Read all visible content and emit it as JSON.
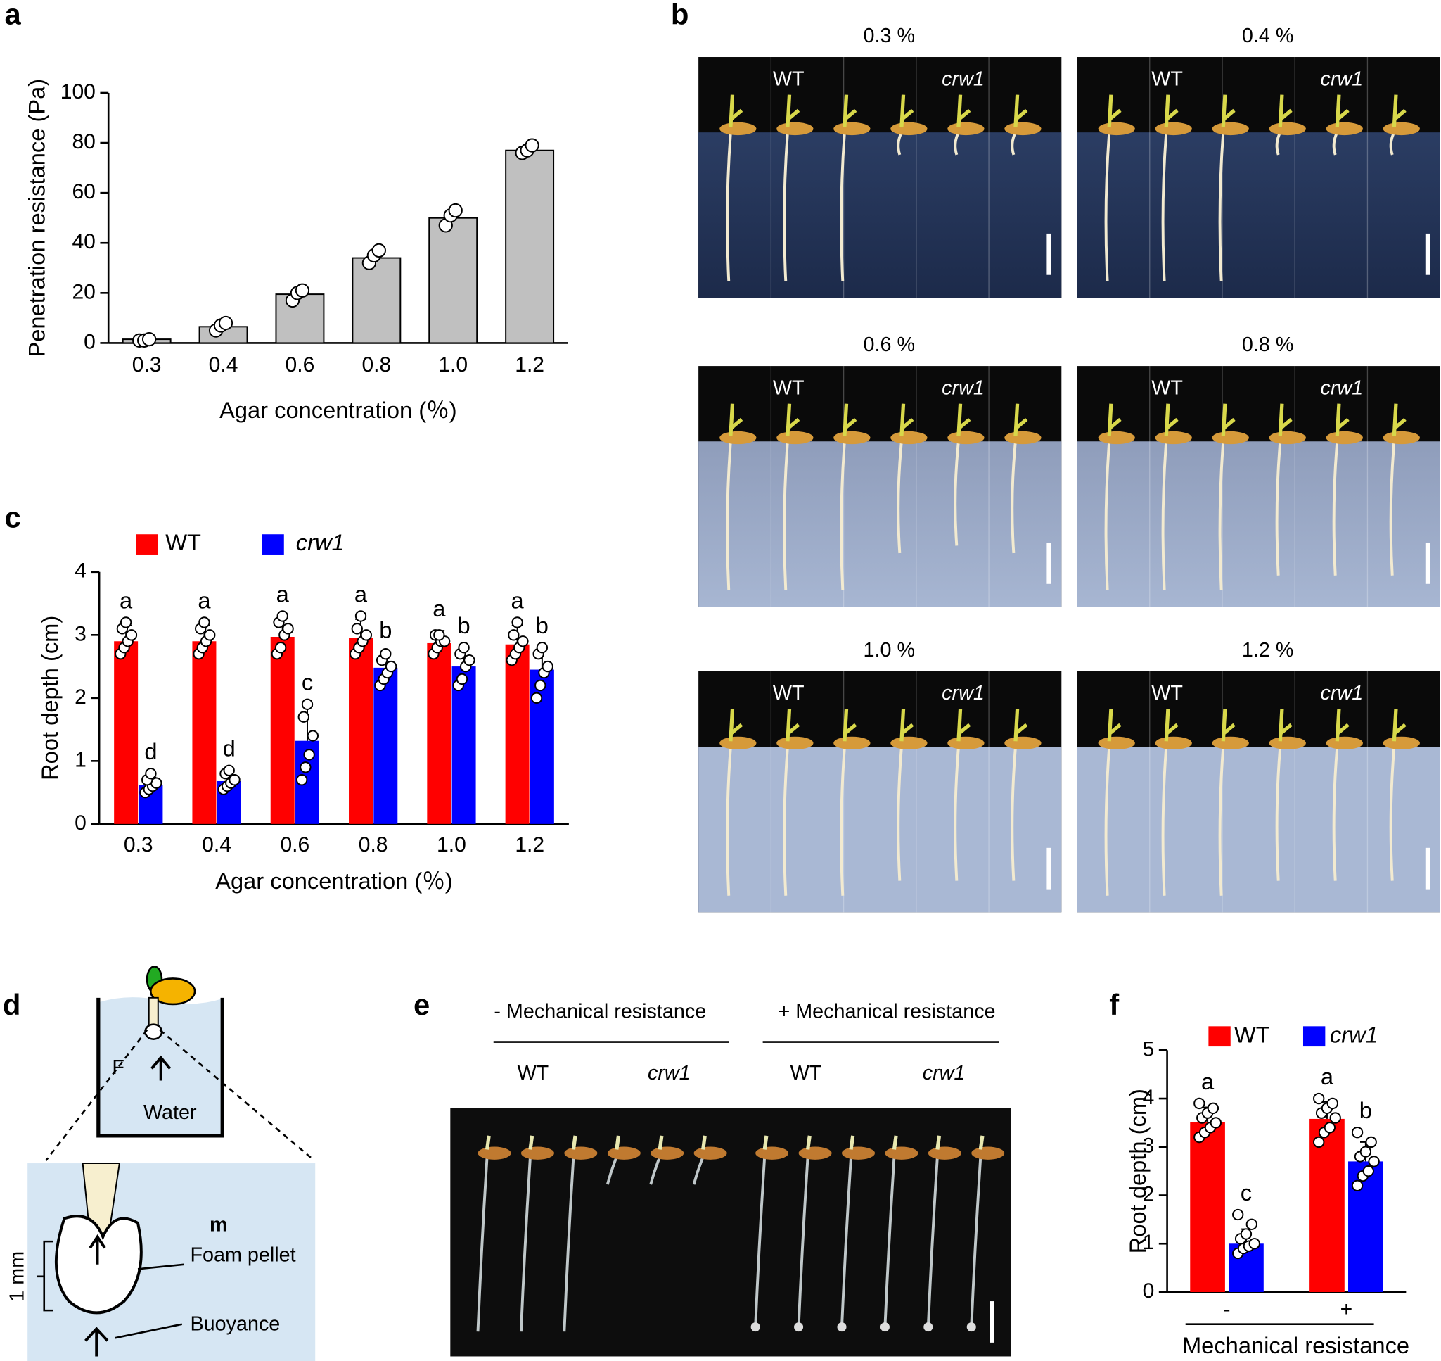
{
  "panel_labels": [
    "a",
    "b",
    "c",
    "d",
    "e",
    "f"
  ],
  "chart_data": [
    {
      "type": "bar",
      "ylabel": "Penetration resistance (Pa)",
      "xlabel": "Agar concentration (％)",
      "categories": [
        "0.3",
        "0.4",
        "0.6",
        "0.8",
        "1.0",
        "1.2"
      ],
      "series": [
        {
          "color": "#c0c0c0",
          "values": [
            1.5,
            6.5,
            19.5,
            34,
            50,
            77
          ],
          "points": [
            [
              1,
              1,
              1.5
            ],
            [
              5,
              7,
              8
            ],
            [
              17,
              20,
              21
            ],
            [
              32,
              35,
              37
            ],
            [
              47,
              51,
              53
            ],
            [
              76,
              77,
              79
            ]
          ]
        }
      ],
      "ylim": [
        0,
        100
      ],
      "yticks": [
        0,
        20,
        40,
        60,
        80,
        100
      ]
    },
    {
      "type": "bar",
      "ylabel": "Root depth (cm)",
      "xlabel": "Agar concentration (％)",
      "categories": [
        "0.3",
        "0.4",
        "0.6",
        "0.8",
        "1.0",
        "1.2"
      ],
      "series": [
        {
          "name": "WT",
          "color": "#ff0000",
          "values": [
            2.9,
            2.9,
            2.97,
            2.95,
            2.87,
            2.85
          ],
          "errors": [
            0.25,
            0.25,
            0.3,
            0.3,
            0.2,
            0.3
          ],
          "letters": [
            "a",
            "a",
            "a",
            "a",
            "a",
            "a"
          ],
          "points": [
            [
              2.7,
              2.8,
              2.9,
              3.0,
              3.1,
              3.2
            ],
            [
              2.7,
              2.8,
              2.9,
              3.0,
              3.1,
              3.2
            ],
            [
              2.7,
              2.8,
              3.0,
              3.1,
              3.2,
              3.3
            ],
            [
              2.7,
              2.8,
              2.9,
              3.0,
              3.1,
              3.3
            ],
            [
              2.7,
              2.8,
              2.9,
              2.9,
              3.0,
              3.0
            ],
            [
              2.6,
              2.7,
              2.8,
              2.9,
              3.0,
              3.2
            ]
          ]
        },
        {
          "name": "crw1",
          "color": "#0000ff",
          "values": [
            0.62,
            0.68,
            1.32,
            2.48,
            2.5,
            2.45
          ],
          "errors": [
            0.12,
            0.15,
            0.55,
            0.25,
            0.3,
            0.35
          ],
          "letters": [
            "d",
            "d",
            "c",
            "b",
            "b",
            "b"
          ],
          "points": [
            [
              0.5,
              0.55,
              0.6,
              0.65,
              0.7,
              0.8
            ],
            [
              0.55,
              0.6,
              0.65,
              0.7,
              0.8,
              0.85
            ],
            [
              0.7,
              0.9,
              1.1,
              1.4,
              1.7,
              1.9
            ],
            [
              2.2,
              2.3,
              2.4,
              2.5,
              2.6,
              2.7
            ],
            [
              2.2,
              2.3,
              2.5,
              2.6,
              2.7,
              2.8
            ],
            [
              2.0,
              2.2,
              2.4,
              2.5,
              2.7,
              2.8
            ]
          ]
        }
      ],
      "ylim": [
        0,
        4
      ],
      "yticks": [
        0,
        1,
        2,
        3,
        4
      ]
    },
    {
      "type": "bar",
      "ylabel": "Root depth (cm)",
      "xlabel": "Mechanical resistance",
      "categories": [
        "-",
        "+"
      ],
      "series": [
        {
          "name": "WT",
          "color": "#ff0000",
          "values": [
            3.52,
            3.58
          ],
          "errors": [
            0.3,
            0.35
          ],
          "letters": [
            "a",
            "a"
          ],
          "points": [
            [
              3.2,
              3.3,
              3.4,
              3.5,
              3.6,
              3.7,
              3.8,
              3.9
            ],
            [
              3.1,
              3.3,
              3.4,
              3.6,
              3.7,
              3.8,
              3.9,
              4.0
            ]
          ]
        },
        {
          "name": "crw1",
          "color": "#0000ff",
          "values": [
            1.0,
            2.7
          ],
          "errors": [
            0.3,
            0.4
          ],
          "letters": [
            "c",
            "b"
          ],
          "points": [
            [
              0.8,
              0.9,
              0.95,
              1.0,
              1.1,
              1.2,
              1.4,
              1.6
            ],
            [
              2.2,
              2.4,
              2.5,
              2.7,
              2.8,
              2.9,
              3.1,
              3.3
            ]
          ]
        }
      ],
      "ylim": [
        0,
        5
      ],
      "yticks": [
        0,
        1,
        2,
        3,
        4,
        5
      ]
    }
  ],
  "photo_b": [
    {
      "title": "0.3 %",
      "left": "WT",
      "right": "crw1"
    },
    {
      "title": "0.4 %",
      "left": "WT",
      "right": "crw1"
    },
    {
      "title": "0.6 %",
      "left": "WT",
      "right": "crw1"
    },
    {
      "title": "0.8 %",
      "left": "WT",
      "right": "crw1"
    },
    {
      "title": "1.0 %",
      "left": "WT",
      "right": "crw1"
    },
    {
      "title": "1.2 %",
      "left": "WT",
      "right": "crw1"
    }
  ],
  "photo_e": {
    "groups": [
      "- Mechanical resistance",
      "+ Mechanical resistance"
    ],
    "labels": [
      "WT",
      "crw1",
      "WT",
      "crw1"
    ]
  },
  "diagram_d": {
    "force": "F",
    "medium": "Water",
    "mass": "m",
    "pellet": "Foam pellet",
    "scale": "1 mm",
    "buoyancy": "Buoyance"
  }
}
